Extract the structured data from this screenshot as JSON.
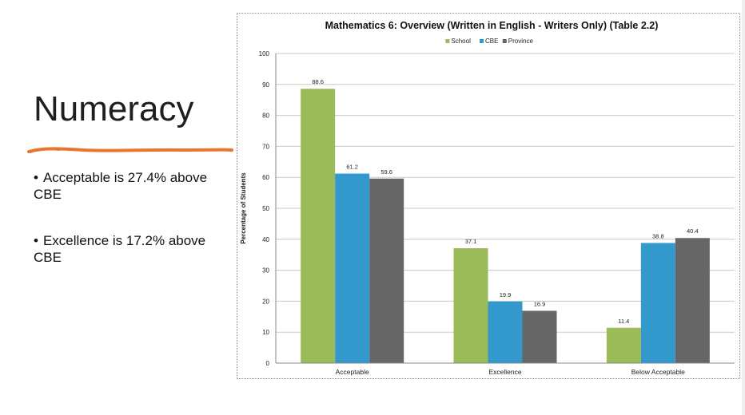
{
  "slide": {
    "title": "Numeracy",
    "bullets": [
      {
        "text": "Acceptable is 27.4% above CBE"
      },
      {
        "text": "Excellence is 17.2% above CBE"
      }
    ],
    "bullet_symbol": "•",
    "accent_color": "#e8772e"
  },
  "chart_data": {
    "type": "bar",
    "title": "Mathematics 6: Overview (Written in English - Writers Only) (Table 2.2)",
    "xlabel": "",
    "ylabel": "Percentage of Students",
    "categories": [
      "Acceptable",
      "Excellence",
      "Below Acceptable"
    ],
    "series": [
      {
        "name": "School",
        "values": [
          88.6,
          37.1,
          11.4
        ],
        "color": "#9bbb59"
      },
      {
        "name": "CBE",
        "values": [
          61.2,
          19.9,
          38.8
        ],
        "color": "#3399cc"
      },
      {
        "name": "Province",
        "values": [
          59.6,
          16.9,
          40.4
        ],
        "color": "#666666"
      }
    ],
    "ylim": [
      0,
      100
    ],
    "yticks": [
      0,
      10,
      20,
      30,
      40,
      50,
      60,
      70,
      80,
      90,
      100
    ],
    "grid": true,
    "legend_position": "top"
  }
}
